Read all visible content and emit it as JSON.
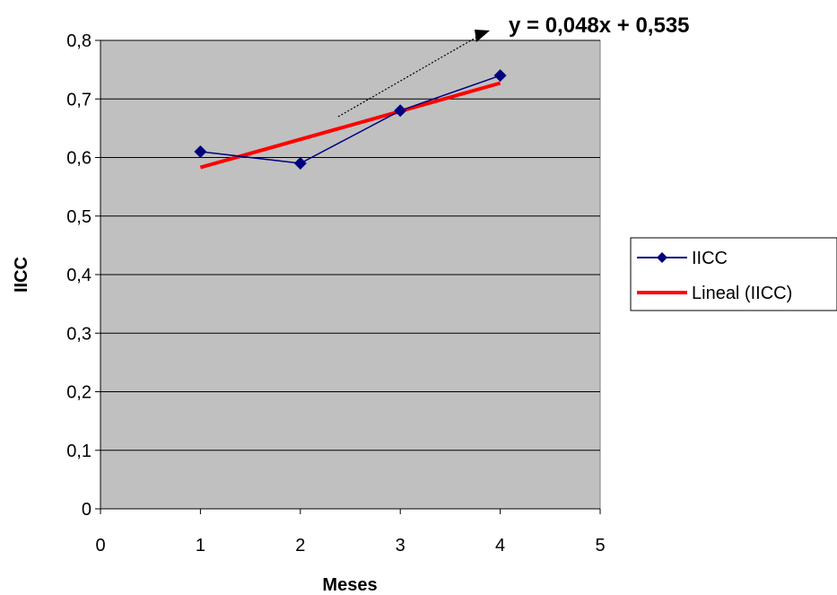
{
  "chart_data": {
    "type": "scatter",
    "xlabel": "Meses",
    "ylabel": "IICC",
    "xlim": [
      0,
      5
    ],
    "ylim": [
      0,
      0.8
    ],
    "x_ticks": [
      "0",
      "1",
      "2",
      "3",
      "4",
      "5"
    ],
    "y_ticks": [
      "0",
      "0,1",
      "0,2",
      "0,3",
      "0,4",
      "0,5",
      "0,6",
      "0,7",
      "0,8"
    ],
    "grid": "horizontal",
    "legend_position": "right",
    "plot_background": "#C0C0C0",
    "series": [
      {
        "name": "IICC",
        "color": "#000080",
        "marker": "diamond",
        "x": [
          1,
          2,
          3,
          4
        ],
        "y": [
          0.61,
          0.59,
          0.68,
          0.74
        ]
      },
      {
        "name": "Lineal (IICC)",
        "color": "#FF0000",
        "kind": "trendline",
        "x": [
          1,
          4
        ],
        "y": [
          0.583,
          0.727
        ]
      }
    ],
    "annotation": {
      "text": "y = 0,048x + 0,535"
    }
  }
}
